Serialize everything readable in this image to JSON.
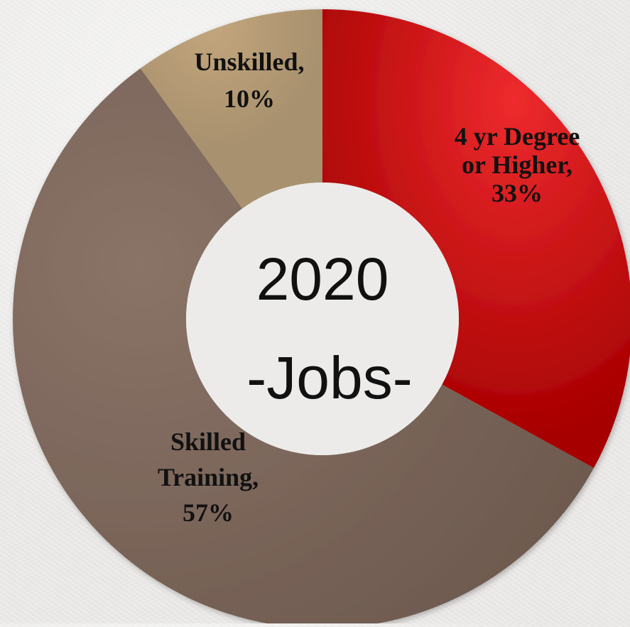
{
  "chart_data": {
    "type": "pie",
    "donut": true,
    "center_text": [
      "2020",
      "-Jobs-"
    ],
    "slices": [
      {
        "label_lines": [
          "4 yr Degree",
          "or Higher,",
          "33%"
        ],
        "value": 33,
        "color": "#c40000"
      },
      {
        "label_lines": [
          "Skilled",
          "Training,",
          "57%"
        ],
        "value": 57,
        "color": "#7d665c"
      },
      {
        "label_lines": [
          "Unskilled,",
          "10%"
        ],
        "value": 10,
        "color": "#b09670"
      }
    ],
    "start_angle": "top (12 o'clock)",
    "direction": "clockwise",
    "legend": "none"
  }
}
